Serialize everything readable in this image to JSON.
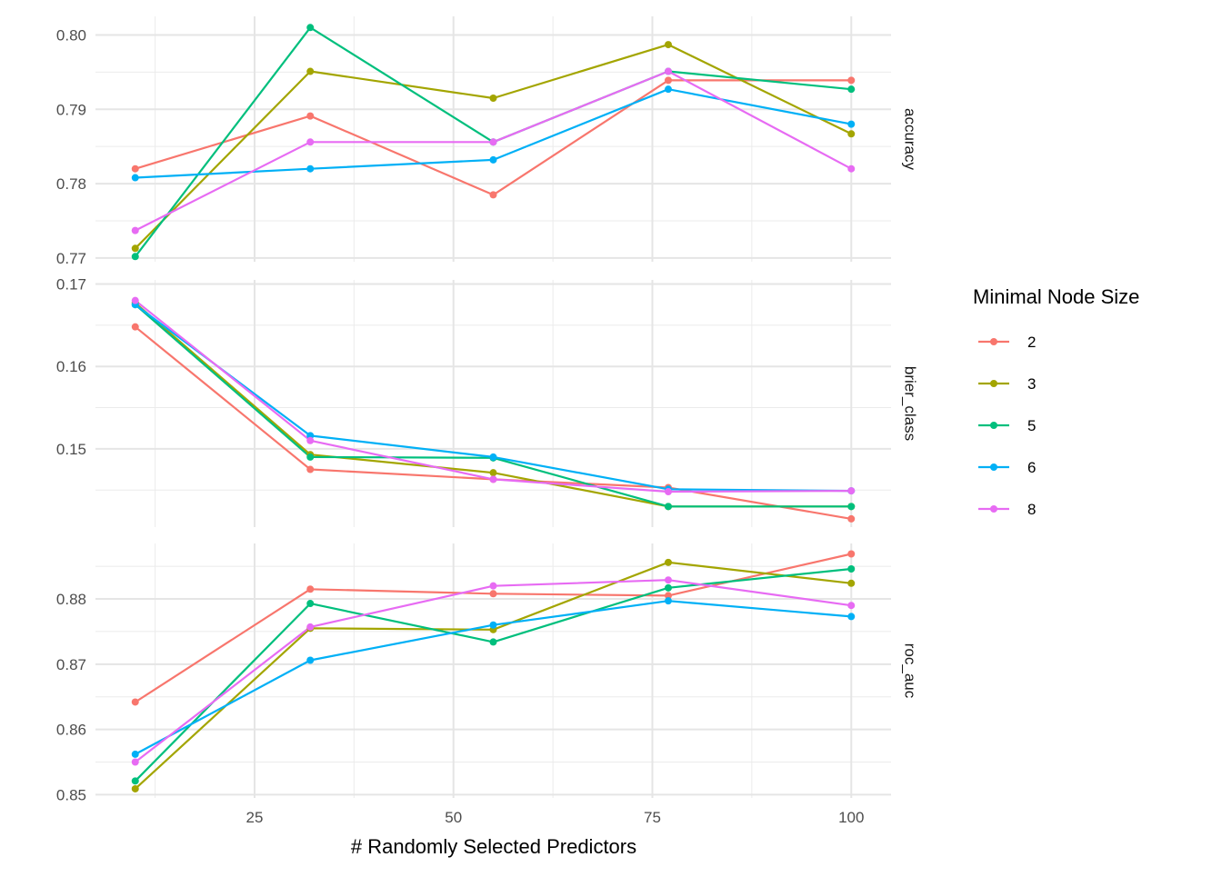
{
  "chart_data": {
    "type": "line",
    "xlabel": "# Randomly Selected Predictors",
    "x_ticks": [
      25,
      50,
      75,
      100
    ],
    "x_minor_ticks": [
      12.5,
      37.5,
      62.5,
      87.5
    ],
    "xlim": [
      5,
      105
    ],
    "x": [
      10,
      32,
      55,
      77,
      100
    ],
    "legend": {
      "title": "Minimal Node Size",
      "position": "right",
      "entries": [
        "2",
        "3",
        "5",
        "6",
        "8"
      ]
    },
    "grid": true,
    "facets": [
      {
        "label": "accuracy",
        "ylim": [
          0.7695,
          0.8025
        ],
        "y_ticks": [
          0.77,
          0.78,
          0.79,
          0.8
        ],
        "y_tick_labels": [
          "0.77",
          "0.78",
          "0.79",
          "0.80"
        ],
        "y_minor_ticks": [
          0.775,
          0.785,
          0.795
        ],
        "series": [
          {
            "name": "2",
            "color": "#F8766D",
            "values": [
              0.782,
              0.7891,
              0.7785,
              0.7939,
              0.7939
            ]
          },
          {
            "name": "3",
            "color": "#A3A500",
            "values": [
              0.7713,
              0.7951,
              0.7915,
              0.7987,
              0.7867
            ]
          },
          {
            "name": "5",
            "color": "#00BF7D",
            "values": [
              0.7702,
              0.801,
              0.7856,
              0.7951,
              0.7927
            ]
          },
          {
            "name": "6",
            "color": "#00B0F6",
            "values": [
              0.7808,
              0.782,
              0.7832,
              0.7927,
              0.788
            ]
          },
          {
            "name": "8",
            "color": "#E76BF3",
            "values": [
              0.7737,
              0.7856,
              0.7856,
              0.7951,
              0.782
            ]
          }
        ]
      },
      {
        "label": "brier_class",
        "ylim": [
          0.1405,
          0.1705
        ],
        "y_ticks": [
          0.15,
          0.16,
          0.17
        ],
        "y_tick_labels": [
          "0.15",
          "0.16",
          "0.17"
        ],
        "y_minor_ticks": [
          0.145,
          0.155,
          0.165
        ],
        "series": [
          {
            "name": "2",
            "color": "#F8766D",
            "values": [
              0.1648,
              0.1475,
              0.1463,
              0.1453,
              0.1415
            ]
          },
          {
            "name": "3",
            "color": "#A3A500",
            "values": [
              0.1677,
              0.1493,
              0.1471,
              0.143,
              0.143
            ]
          },
          {
            "name": "5",
            "color": "#00BF7D",
            "values": [
              0.1675,
              0.149,
              0.1489,
              0.143,
              0.143
            ]
          },
          {
            "name": "6",
            "color": "#00B0F6",
            "values": [
              0.1675,
              0.1516,
              0.149,
              0.1451,
              0.1449
            ]
          },
          {
            "name": "8",
            "color": "#E76BF3",
            "values": [
              0.168,
              0.151,
              0.1463,
              0.1448,
              0.1449
            ]
          }
        ]
      },
      {
        "label": "roc_auc",
        "ylim": [
          0.8495,
          0.8885
        ],
        "y_ticks": [
          0.85,
          0.86,
          0.87,
          0.88
        ],
        "y_tick_labels": [
          "0.85",
          "0.86",
          "0.87",
          "0.88"
        ],
        "y_minor_ticks": [
          0.855,
          0.865,
          0.875,
          0.885
        ],
        "series": [
          {
            "name": "2",
            "color": "#F8766D",
            "values": [
              0.8642,
              0.8815,
              0.8808,
              0.8805,
              0.8869
            ]
          },
          {
            "name": "3",
            "color": "#A3A500",
            "values": [
              0.8509,
              0.8755,
              0.8753,
              0.8856,
              0.8824
            ]
          },
          {
            "name": "5",
            "color": "#00BF7D",
            "values": [
              0.8521,
              0.8793,
              0.8734,
              0.8817,
              0.8846
            ]
          },
          {
            "name": "6",
            "color": "#00B0F6",
            "values": [
              0.8562,
              0.8706,
              0.876,
              0.8797,
              0.8773
            ]
          },
          {
            "name": "8",
            "color": "#E76BF3",
            "values": [
              0.855,
              0.8757,
              0.882,
              0.8829,
              0.879
            ]
          }
        ]
      }
    ]
  }
}
